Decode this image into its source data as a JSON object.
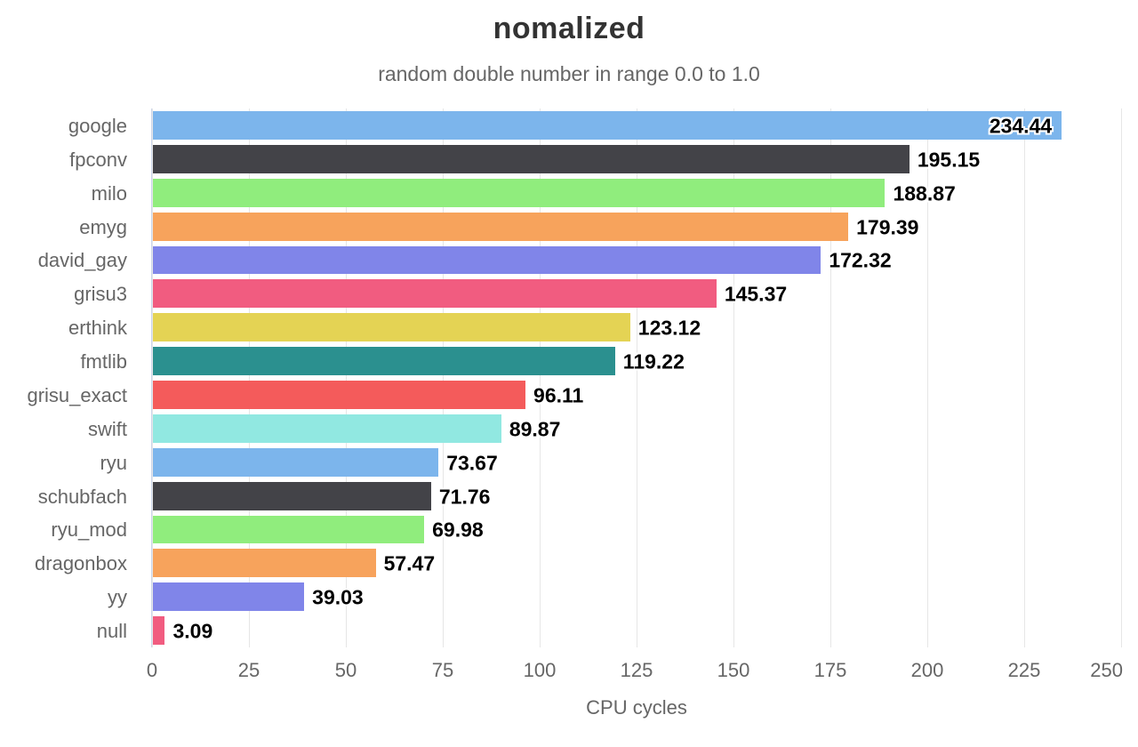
{
  "chart_data": {
    "type": "bar",
    "orientation": "horizontal",
    "title": "nomalized",
    "subtitle": "random double number in range 0.0 to 1.0",
    "xlabel": "CPU cycles",
    "xlim": [
      0,
      250
    ],
    "xticks": [
      0,
      25,
      50,
      75,
      100,
      125,
      150,
      175,
      200,
      225,
      250
    ],
    "grid": true,
    "legend": false,
    "categories": [
      "google",
      "fpconv",
      "milo",
      "emyg",
      "david_gay",
      "grisu3",
      "erthink",
      "fmtlib",
      "grisu_exact",
      "swift",
      "ryu",
      "schubfach",
      "ryu_mod",
      "dragonbox",
      "yy",
      "null"
    ],
    "values": [
      234.44,
      195.15,
      188.87,
      179.39,
      172.32,
      145.37,
      123.12,
      119.22,
      96.11,
      89.87,
      73.67,
      71.76,
      69.98,
      57.47,
      39.03,
      3.09
    ],
    "value_labels": [
      "234.44",
      "195.15",
      "188.87",
      "179.39",
      "172.32",
      "145.37",
      "123.12",
      "119.22",
      "96.11",
      "89.87",
      "73.67",
      "71.76",
      "69.98",
      "57.47",
      "39.03",
      "3.09"
    ],
    "bar_colors": [
      "#7cb5ec",
      "#434348",
      "#90ed7d",
      "#f7a35c",
      "#8085e9",
      "#f15c80",
      "#e4d354",
      "#2b908f",
      "#f45b5b",
      "#91e8e1",
      "#7cb5ec",
      "#434348",
      "#90ed7d",
      "#f7a35c",
      "#8085e9",
      "#f15c80"
    ],
    "palette": [
      "#7cb5ec",
      "#434348",
      "#90ed7d",
      "#f7a35c",
      "#8085e9",
      "#f15c80",
      "#e4d354",
      "#2b908f",
      "#f45b5b",
      "#91e8e1"
    ]
  },
  "style": {
    "background": "#ffffff",
    "title_color": "#333333",
    "subtitle_color": "#666666",
    "axis_text_color": "#666666",
    "axis_line_color": "#ccd6eb",
    "gridline_color": "#e6e6e6",
    "value_label_color": "#000000",
    "value_label_outline": "#ffffff"
  }
}
